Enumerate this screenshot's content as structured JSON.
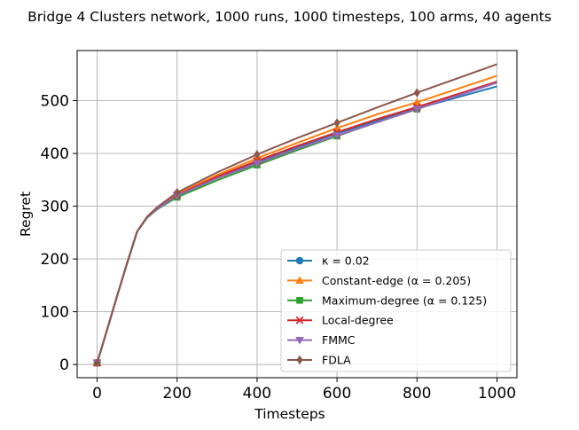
{
  "chart_data": {
    "type": "line",
    "title": "Bridge 4 Clusters network, 1000 runs, 1000 timesteps, 100 arms, 40 agents",
    "xlabel": "Timesteps",
    "ylabel": "Regret",
    "xlim": [
      -50,
      1050
    ],
    "ylim": [
      -25,
      595
    ],
    "xticks": [
      0,
      200,
      400,
      600,
      800,
      1000
    ],
    "yticks": [
      0,
      100,
      200,
      300,
      400,
      500
    ],
    "grid": true,
    "legend_position": "lower-right",
    "x": [
      0,
      25,
      50,
      75,
      100,
      125,
      150,
      200,
      300,
      400,
      500,
      600,
      700,
      800,
      900,
      1000
    ],
    "marker_x": [
      0,
      200,
      400,
      600,
      800
    ],
    "series": [
      {
        "name": "κ = 0.02",
        "legend_label": "κ = 0.02",
        "color": "#1f77b4",
        "marker": "circle",
        "values": [
          3,
          66,
          130,
          192,
          252,
          279,
          296,
          323,
          356,
          384,
          412,
          438,
          462,
          485,
          506,
          527
        ]
      },
      {
        "name": "Constant-edge (α = 0.205)",
        "legend_label": "Constant-edge (α = 0.205)",
        "color": "#ff7f0e",
        "marker": "triangle-up",
        "values": [
          3,
          66,
          130,
          192,
          252,
          279,
          296,
          323,
          359,
          391,
          420,
          448,
          474,
          497,
          522,
          547
        ]
      },
      {
        "name": "Maximum-degree (α = 0.125)",
        "legend_label": "Maximum-degree (α = 0.125)",
        "color": "#2ca02c",
        "marker": "square",
        "values": [
          3,
          66,
          130,
          192,
          252,
          278,
          294,
          317,
          349,
          378,
          406,
          433,
          459,
          484,
          510,
          536
        ]
      },
      {
        "name": "Local-degree",
        "legend_label": "Local-degree",
        "color": "#d62728",
        "marker": "x",
        "values": [
          3,
          66,
          130,
          192,
          252,
          279,
          295,
          321,
          356,
          386,
          414,
          440,
          465,
          488,
          512,
          536
        ]
      },
      {
        "name": "FMMC",
        "legend_label": "FMMC",
        "color": "#9467bd",
        "marker": "triangle-down",
        "values": [
          3,
          66,
          130,
          192,
          252,
          279,
          295,
          320,
          353,
          381,
          409,
          434,
          459,
          484,
          509,
          534
        ]
      },
      {
        "name": "FDLA",
        "legend_label": "FDLA",
        "color": "#8c564b",
        "marker": "diamond",
        "values": [
          3,
          66,
          130,
          192,
          252,
          280,
          298,
          326,
          364,
          398,
          429,
          458,
          487,
          515,
          542,
          569
        ]
      }
    ]
  }
}
